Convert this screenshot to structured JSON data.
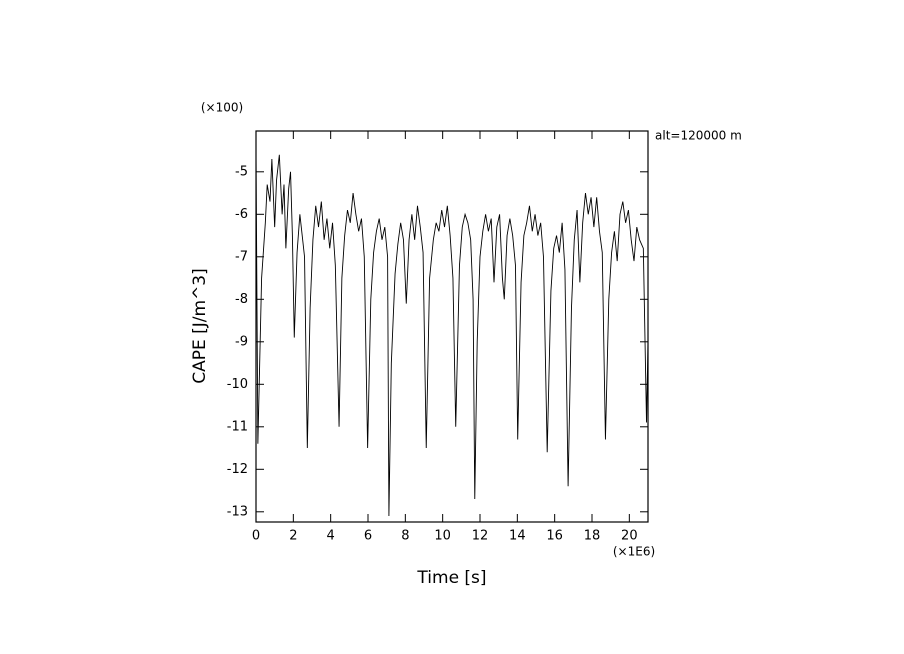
{
  "chart_data": {
    "type": "line",
    "y_multiplier_label": "(×100)",
    "x_multiplier_label": "(×1E6)",
    "annotation": "alt=120000 m",
    "x_label": "Time [s]",
    "y_label": "CAPE [J/m^3]",
    "color": "#000000",
    "x": [
      0,
      0.1,
      0.3,
      0.5,
      0.6,
      0.75,
      0.85,
      1.0,
      1.1,
      1.25,
      1.4,
      1.5,
      1.6,
      1.75,
      1.85,
      1.95,
      2.05,
      2.2,
      2.35,
      2.5,
      2.6,
      2.75,
      2.9,
      3.05,
      3.2,
      3.35,
      3.5,
      3.65,
      3.8,
      3.95,
      4.1,
      4.25,
      4.45,
      4.6,
      4.75,
      4.9,
      5.05,
      5.2,
      5.35,
      5.5,
      5.65,
      5.8,
      5.98,
      6.15,
      6.3,
      6.45,
      6.6,
      6.75,
      6.9,
      7.05,
      7.12,
      7.25,
      7.45,
      7.6,
      7.75,
      7.9,
      8.05,
      8.2,
      8.35,
      8.5,
      8.65,
      8.8,
      8.95,
      9.12,
      9.3,
      9.5,
      9.65,
      9.8,
      9.95,
      10.1,
      10.25,
      10.4,
      10.55,
      10.7,
      10.9,
      11.05,
      11.2,
      11.35,
      11.5,
      11.63,
      11.72,
      11.85,
      12.0,
      12.15,
      12.3,
      12.45,
      12.6,
      12.75,
      12.9,
      13.05,
      13.2,
      13.3,
      13.45,
      13.6,
      13.75,
      13.9,
      14.02,
      14.2,
      14.35,
      14.5,
      14.65,
      14.8,
      14.95,
      15.1,
      15.25,
      15.4,
      15.6,
      15.8,
      15.95,
      16.1,
      16.25,
      16.4,
      16.55,
      16.72,
      16.9,
      17.05,
      17.2,
      17.35,
      17.5,
      17.65,
      17.8,
      17.95,
      18.1,
      18.25,
      18.4,
      18.55,
      18.72,
      18.9,
      19.05,
      19.2,
      19.35,
      19.5,
      19.65,
      19.8,
      19.95,
      20.1,
      20.25,
      20.4,
      20.55,
      20.75,
      20.92,
      21.0
    ],
    "values": [
      -4.5,
      -11.4,
      -7.5,
      -6.2,
      -5.3,
      -5.7,
      -4.7,
      -6.3,
      -5.2,
      -4.6,
      -6.0,
      -5.3,
      -6.8,
      -5.4,
      -5.0,
      -6.5,
      -8.9,
      -6.9,
      -6.0,
      -6.6,
      -7.0,
      -11.5,
      -8.2,
      -6.6,
      -5.8,
      -6.3,
      -5.7,
      -6.6,
      -6.1,
      -6.8,
      -6.2,
      -7.2,
      -11.0,
      -7.5,
      -6.5,
      -5.9,
      -6.2,
      -5.5,
      -6.0,
      -6.4,
      -6.1,
      -7.0,
      -11.5,
      -8.0,
      -6.9,
      -6.4,
      -6.1,
      -6.6,
      -6.3,
      -7.0,
      -13.1,
      -9.5,
      -7.4,
      -6.7,
      -6.2,
      -6.6,
      -8.1,
      -6.6,
      -6.0,
      -6.6,
      -5.8,
      -6.3,
      -6.9,
      -11.5,
      -7.5,
      -6.6,
      -6.2,
      -6.4,
      -5.9,
      -6.3,
      -5.8,
      -6.5,
      -7.5,
      -11.0,
      -7.2,
      -6.3,
      -6.0,
      -6.2,
      -6.6,
      -8.0,
      -12.7,
      -9.0,
      -7.0,
      -6.4,
      -6.0,
      -6.4,
      -6.1,
      -7.6,
      -6.3,
      -6.0,
      -7.5,
      -8.0,
      -6.5,
      -6.1,
      -6.5,
      -7.2,
      -11.3,
      -7.6,
      -6.5,
      -6.2,
      -5.8,
      -6.4,
      -6.0,
      -6.5,
      -6.2,
      -7.0,
      -11.6,
      -7.8,
      -6.8,
      -6.5,
      -6.9,
      -6.2,
      -7.3,
      -12.4,
      -8.2,
      -6.6,
      -5.9,
      -7.6,
      -6.2,
      -5.5,
      -6.0,
      -5.6,
      -6.3,
      -5.6,
      -6.4,
      -6.9,
      -11.3,
      -8.0,
      -6.9,
      -6.4,
      -7.1,
      -6.0,
      -5.7,
      -6.2,
      -5.9,
      -6.6,
      -7.1,
      -6.3,
      -6.6,
      -6.8,
      -10.9,
      -9.0
    ],
    "xlim": [
      0,
      21
    ],
    "ylim": [
      -13.24,
      -4.04
    ],
    "xticks": [
      0,
      2,
      4,
      6,
      8,
      10,
      12,
      14,
      16,
      18,
      20
    ],
    "yticks": [
      -13,
      -12,
      -11,
      -10,
      -9,
      -8,
      -7,
      -6,
      -5
    ]
  }
}
